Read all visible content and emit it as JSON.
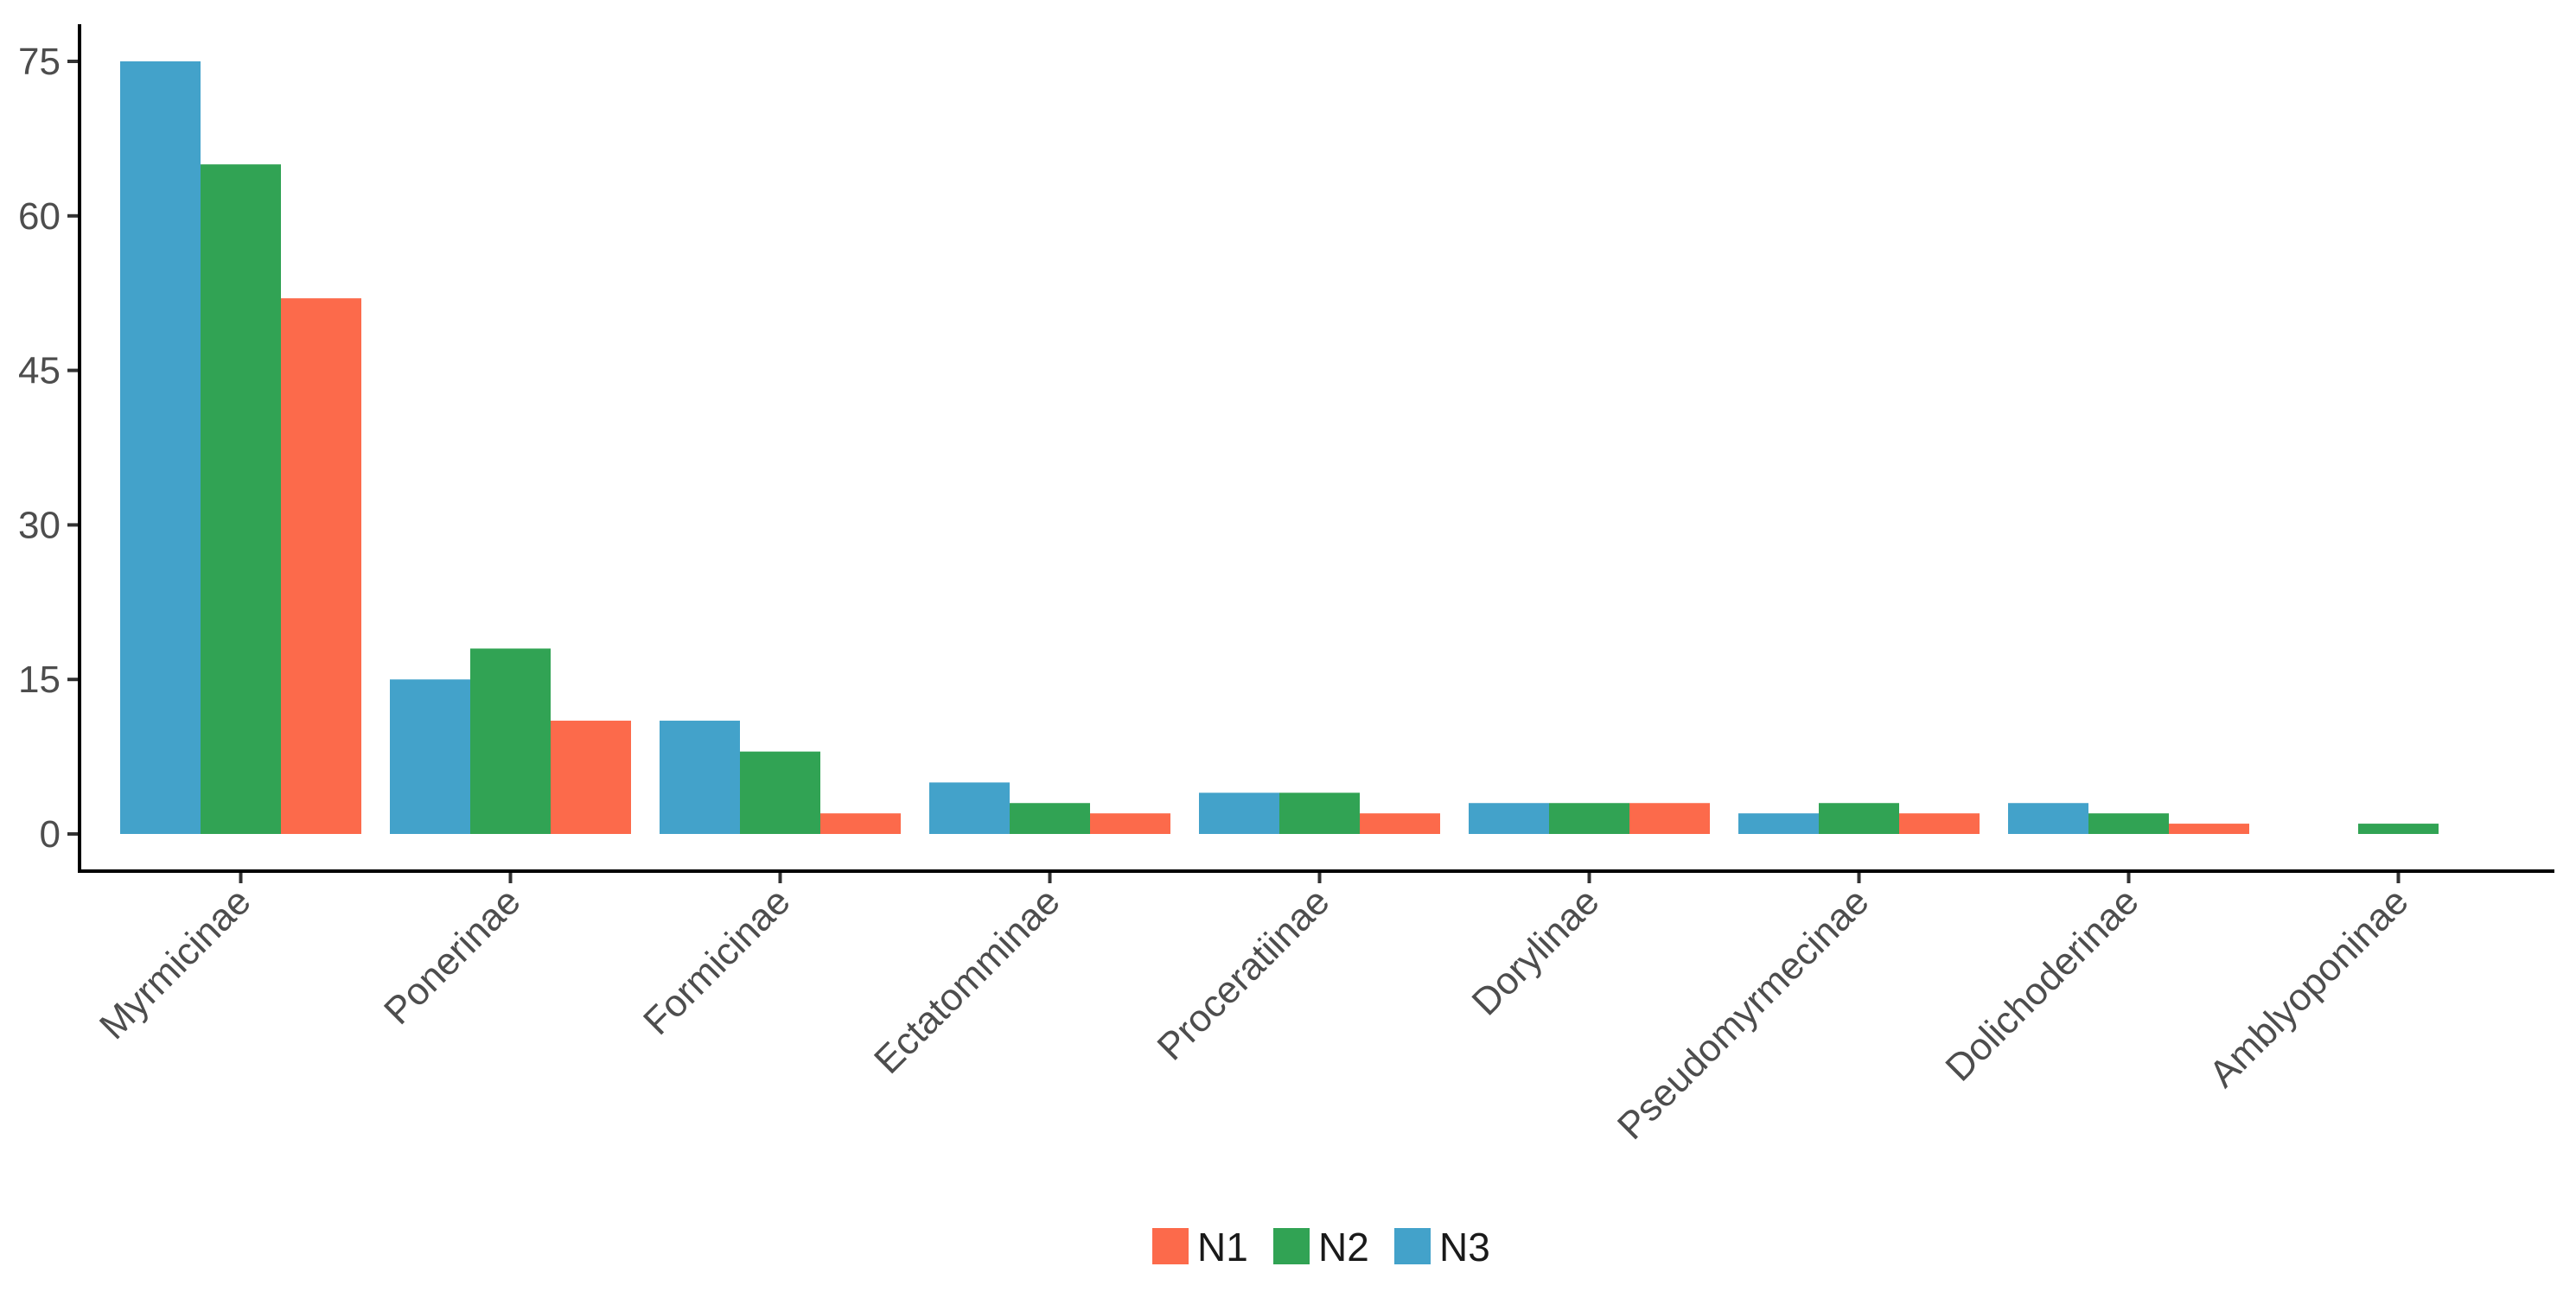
{
  "chart_data": {
    "type": "bar",
    "title": "",
    "xlabel": "",
    "ylabel": "",
    "ylim": [
      0,
      78
    ],
    "yticks": [
      0,
      15,
      30,
      45,
      60,
      75
    ],
    "categories": [
      "Myrmicinae",
      "Ponerinae",
      "Formicinae",
      "Ectatomminae",
      "Proceratiinae",
      "Dorylinae",
      "Pseudomyrmecinae",
      "Dolichoderinae",
      "Amblyoponinae"
    ],
    "series": [
      {
        "name": "N3",
        "color": "#43A2CA",
        "values": [
          75,
          15,
          11,
          5,
          4,
          3,
          2,
          3,
          0
        ]
      },
      {
        "name": "N2",
        "color": "#31A354",
        "values": [
          65,
          18,
          8,
          3,
          4,
          3,
          3,
          2,
          1
        ]
      },
      {
        "name": "N1",
        "color": "#FC6A4B",
        "values": [
          52,
          11,
          2,
          2,
          2,
          3,
          2,
          1,
          0
        ]
      }
    ],
    "grid": false,
    "legend_position": "bottom",
    "legend_order": [
      "N1",
      "N2",
      "N3"
    ]
  }
}
